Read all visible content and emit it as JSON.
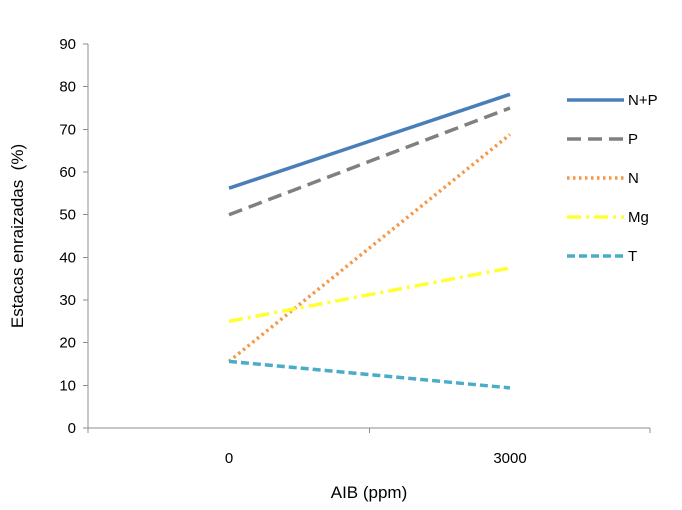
{
  "chart_data": {
    "type": "line",
    "categories": [
      "0",
      "3000"
    ],
    "xlabel": "AIB (ppm)",
    "ylabel": "Estacas enraizadas  (%)",
    "ylim": [
      0,
      90
    ],
    "yticks": [
      0,
      10,
      20,
      30,
      40,
      50,
      60,
      70,
      80,
      90
    ],
    "grid": false,
    "legend_position": "right",
    "series": [
      {
        "name": "N+P",
        "values": [
          56.2,
          78.2
        ],
        "color": "#4a7ebb",
        "style": "solid"
      },
      {
        "name": "P",
        "values": [
          50.0,
          75.0
        ],
        "color": "#808080",
        "style": "dash"
      },
      {
        "name": "N",
        "values": [
          15.6,
          68.8
        ],
        "color": "#f79646",
        "style": "dot"
      },
      {
        "name": "Mg",
        "values": [
          25.0,
          37.5
        ],
        "color": "#ffff33",
        "style": "dashdot"
      },
      {
        "name": "T",
        "values": [
          15.6,
          9.4
        ],
        "color": "#4bacc6",
        "style": "shortdash"
      }
    ]
  }
}
